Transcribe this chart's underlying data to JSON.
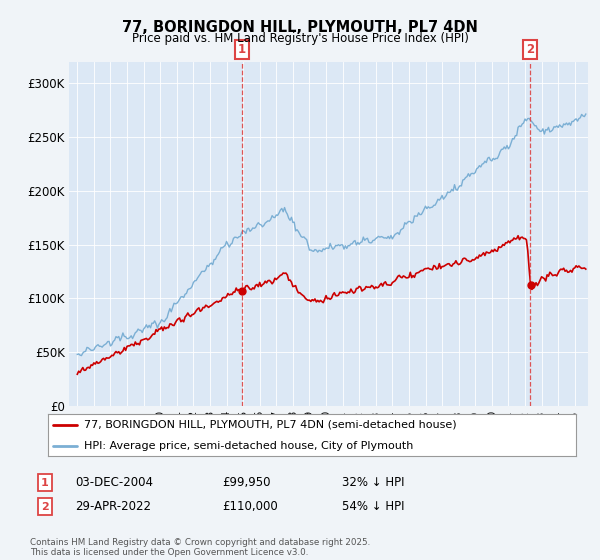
{
  "title": "77, BORINGDON HILL, PLYMOUTH, PL7 4DN",
  "subtitle": "Price paid vs. HM Land Registry's House Price Index (HPI)",
  "background_color": "#f0f4f8",
  "plot_bg_color": "#dce8f5",
  "legend_line1": "77, BORINGDON HILL, PLYMOUTH, PL7 4DN (semi-detached house)",
  "legend_line2": "HPI: Average price, semi-detached house, City of Plymouth",
  "annotation1": {
    "label": "1",
    "date": "03-DEC-2004",
    "price": "£99,950",
    "note": "32% ↓ HPI",
    "x": 2004.92
  },
  "annotation2": {
    "label": "2",
    "date": "29-APR-2022",
    "price": "£110,000",
    "note": "54% ↓ HPI",
    "x": 2022.33
  },
  "footer": "Contains HM Land Registry data © Crown copyright and database right 2025.\nThis data is licensed under the Open Government Licence v3.0.",
  "hpi_color": "#7bafd4",
  "price_color": "#cc0000",
  "vline_color": "#dd4444",
  "ylim": [
    0,
    320000
  ],
  "xlim": [
    1994.5,
    2025.8
  ],
  "yticks": [
    0,
    50000,
    100000,
    150000,
    200000,
    250000,
    300000
  ],
  "ytick_labels": [
    "£0",
    "£50K",
    "£100K",
    "£150K",
    "£200K",
    "£250K",
    "£300K"
  ]
}
